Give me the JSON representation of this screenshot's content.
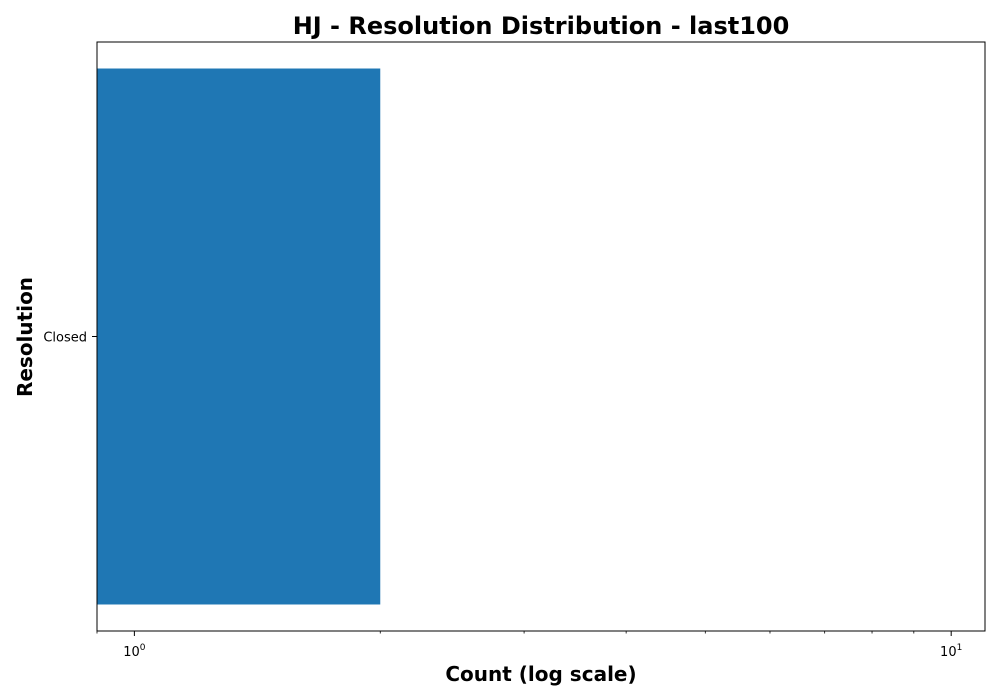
{
  "chart_data": {
    "type": "bar",
    "orientation": "horizontal",
    "title": "HJ - Resolution Distribution - last100",
    "xlabel": "Count (log scale)",
    "ylabel": "Resolution",
    "x_scale": "log",
    "xlim": [
      0.9,
      11
    ],
    "x_ticks": [
      {
        "value": 1,
        "base": "10",
        "exp": "0"
      },
      {
        "value": 10,
        "base": "10",
        "exp": "1"
      }
    ],
    "categories": [
      "Closed"
    ],
    "values": [
      2
    ],
    "bar_color": "#1f77b4",
    "grid": false,
    "legend": "none"
  }
}
